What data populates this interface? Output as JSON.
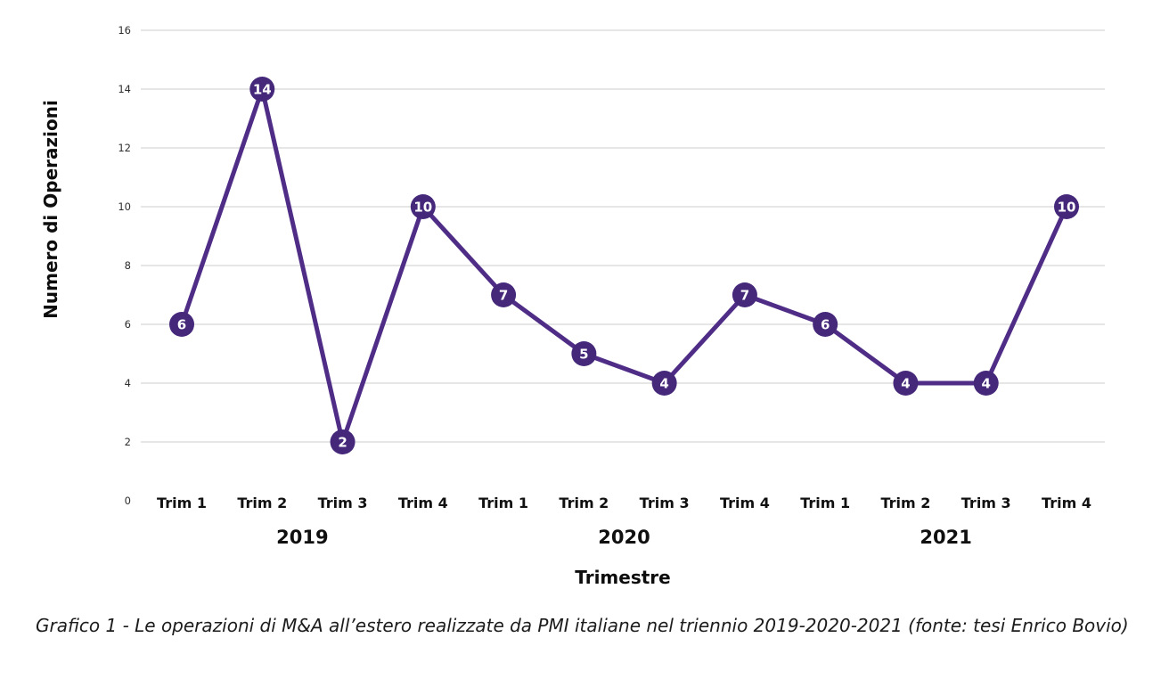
{
  "page": {
    "background": "#ffffff"
  },
  "chart_data": {
    "type": "line",
    "title": "",
    "ylabel": "Numero di Operazioni",
    "xlabel": "Trimestre",
    "categories": [
      "Trim 1",
      "Trim 2",
      "Trim 3",
      "Trim 4",
      "Trim 1",
      "Trim 2",
      "Trim 3",
      "Trim 4",
      "Trim 1",
      "Trim 2",
      "Trim 3",
      "Trim 4"
    ],
    "year_groups": [
      {
        "label": "2019",
        "span": [
          0,
          3
        ]
      },
      {
        "label": "2020",
        "span": [
          4,
          7
        ]
      },
      {
        "label": "2021",
        "span": [
          8,
          11
        ]
      }
    ],
    "series": [
      {
        "name": "Numero di Operazioni",
        "values": [
          6,
          14,
          2,
          10,
          7,
          5,
          4,
          7,
          6,
          4,
          4,
          10
        ]
      }
    ],
    "data_labels_shown": true,
    "y_ticks": [
      0,
      2,
      4,
      6,
      8,
      10,
      12,
      14,
      16
    ],
    "ylim": [
      0,
      16
    ],
    "grid": "horizontal",
    "legend": "none",
    "colors": {
      "line": "#4f2d87",
      "marker": "#45287a",
      "marker_text": "#ffffff",
      "grid": "#d8d8d8",
      "tick_text": "#2e2e2e",
      "label_text": "#101010"
    }
  },
  "caption": "Grafico 1 - Le operazioni di M&A all’estero realizzate da PMI italiane nel triennio 2019-2020-2021 (fonte: tesi Enrico Bovio)"
}
